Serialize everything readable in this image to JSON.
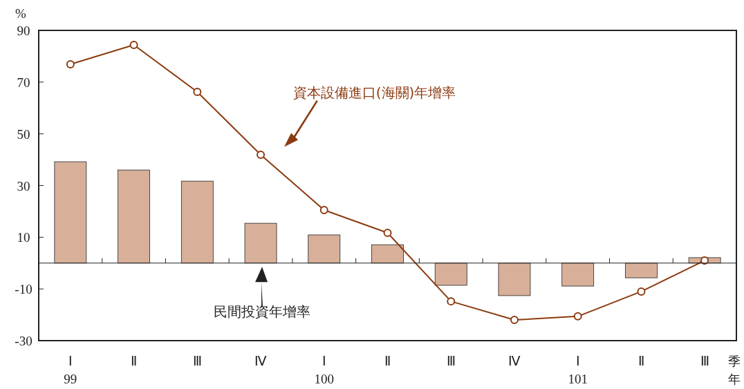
{
  "chart_data": {
    "type": "bar",
    "ylabel": "%",
    "xlabel": "季年",
    "categories": [
      "Ⅰ\n99",
      "Ⅱ",
      "Ⅲ",
      "Ⅳ",
      "Ⅰ\n100",
      "Ⅱ",
      "Ⅲ",
      "Ⅳ",
      "Ⅰ\n101",
      "Ⅱ",
      "Ⅲ"
    ],
    "ylim": [
      -30,
      90
    ],
    "yticks": [
      -30,
      -10,
      10,
      30,
      50,
      70,
      90
    ],
    "grid": false,
    "marker": "circle",
    "line_style": "solid",
    "series": [
      {
        "name": "民間投資年增率",
        "color": "#d8b09a",
        "values": [
          39.2,
          36.0,
          31.7,
          15.4,
          10.9,
          7.1,
          -8.6,
          -12.6,
          -8.9,
          -5.7,
          2.1
        ]
      },
      {
        "name": "資本設備進口(海關)年增率",
        "type": "line",
        "color": "#8b3a0f",
        "values": [
          76.9,
          84.4,
          66.2,
          41.9,
          20.5,
          11.7,
          -14.8,
          -22.0,
          -20.6,
          -11.0,
          1.0
        ]
      }
    ]
  }
}
